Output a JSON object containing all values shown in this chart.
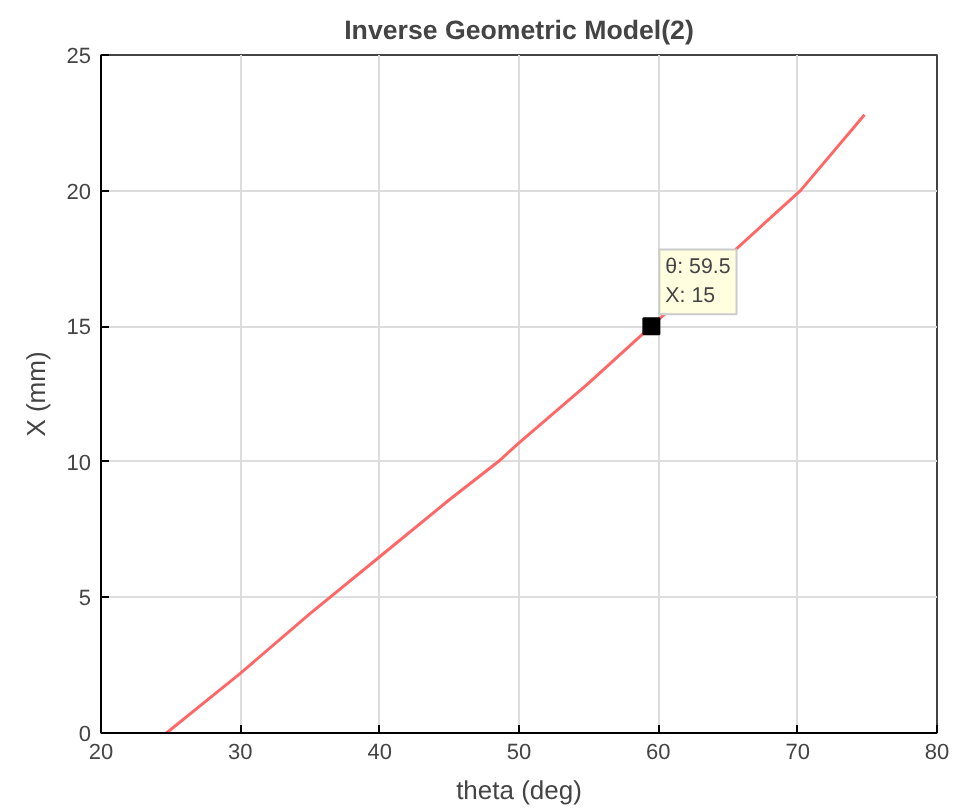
{
  "chart_data": {
    "type": "line",
    "title": "Inverse Geometric Model(2)",
    "xlabel": "theta (deg)",
    "ylabel": "X (mm)",
    "series": [
      {
        "color": "#ff6666",
        "x": [
          24.7,
          30,
          35,
          40,
          45,
          48.5,
          50,
          55,
          59.5,
          70.2,
          74.8
        ],
        "values": [
          0,
          2.2,
          4.4,
          6.5,
          8.6,
          10,
          10.7,
          12.9,
          15,
          20,
          22.8
        ]
      }
    ],
    "annotations": [
      {
        "text": "θ: 59.5\nX: 15",
        "x": 59.5,
        "y": 15
      }
    ],
    "xlim": [
      20,
      80
    ],
    "ylim": [
      0,
      25
    ],
    "xticks": [
      20,
      30,
      40,
      50,
      60,
      70,
      80
    ],
    "yticks": [
      0,
      5,
      10,
      15,
      20,
      25
    ],
    "grid": true,
    "marker": "none",
    "line_style": "solid"
  }
}
